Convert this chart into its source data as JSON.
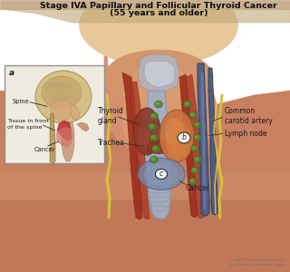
{
  "title_line1": "Stage IVA Papillary and Follicular Thyroid Cancer",
  "title_line2": "(55 years and older)",
  "title_fontsize": 6.8,
  "background_color": "#ffffff",
  "labels": {
    "thyroid_gland": "Thyroid\ngland",
    "trachea": "Trachea",
    "common_carotid": "Common\ncarotid artery",
    "lymph_node": "Lymph node",
    "cancer_main": "Cancer",
    "spine": "Spine",
    "tissue_front": "Tissue in front\nof the spine",
    "cancer_inset": "Cancer",
    "inset_label": "a",
    "label_b": "b",
    "label_c": "c"
  },
  "copyright": "© 2017 Teresa Winslow LLC\nU.S. Govt. has certain rights",
  "skin_base": "#d4956a",
  "skin_neck": "#c8845c",
  "skin_face": "#e8c090",
  "skin_chest": "#c07850",
  "thyroid_left": "#8B3A2A",
  "thyroid_right_cancer": "#C87040",
  "cancer_blue": "#8090a8",
  "trachea_col": "#a0b0c8",
  "muscle_red": "#9B2A1A",
  "vessel_blue_dark": "#4a5a8a",
  "vessel_blue_light": "#6888b0",
  "nerve_yellow": "#d4c040",
  "lymph_green": "#5a8030",
  "inset_bg": "#f0ebe0",
  "inset_border": "#909090",
  "inset_brain": "#c8a870",
  "inset_skull": "#d4b878",
  "inset_cancer_red": "#c03030",
  "inset_tissue_pink": "#d07868",
  "inset_spine_col": "#b09858",
  "label_color": "#1a1a1a",
  "line_color": "#303030",
  "marker_color": "#202020"
}
